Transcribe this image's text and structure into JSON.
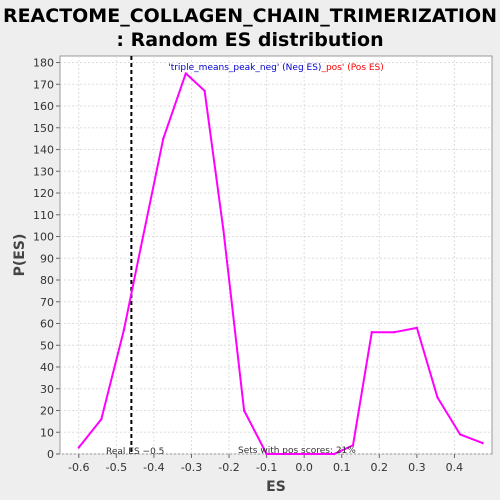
{
  "chart_data": {
    "type": "line",
    "title_line1": "REACTOME_COLLAGEN_CHAIN_TRIMERIZATION",
    "title_line2": ": Random ES distribution",
    "xlabel": "ES",
    "ylabel": "P(ES)",
    "xlim": [
      -0.65,
      0.5
    ],
    "ylim": [
      0,
      183
    ],
    "x_ticks": [
      -0.6,
      -0.5,
      -0.4,
      -0.3,
      -0.2,
      -0.1,
      0.0,
      0.1,
      0.2,
      0.3,
      0.4
    ],
    "x_tick_labels": [
      "-0.6",
      "-0.5",
      "-0.4",
      "-0.3",
      "-0.2",
      "-0.1",
      "0.0",
      "0.1",
      "0.2",
      "0.3",
      "0.4"
    ],
    "y_ticks": [
      0,
      10,
      20,
      30,
      40,
      50,
      60,
      70,
      80,
      90,
      100,
      110,
      120,
      130,
      140,
      150,
      160,
      170,
      180
    ],
    "y_tick_labels": [
      "0",
      "10",
      "20",
      "30",
      "40",
      "50",
      "60",
      "70",
      "80",
      "90",
      "100",
      "110",
      "120",
      "130",
      "140",
      "150",
      "160",
      "170",
      "180"
    ],
    "grid": true,
    "series": [
      {
        "color": "#ff00ff",
        "x": [
          -0.6,
          -0.54,
          -0.48,
          -0.435,
          -0.375,
          -0.315,
          -0.265,
          -0.215,
          -0.16,
          -0.1,
          -0.04,
          0.02,
          0.08,
          0.13,
          0.18,
          0.24,
          0.3,
          0.355,
          0.415,
          0.475
        ],
        "y": [
          3,
          16,
          57,
          95,
          145,
          175,
          167,
          103,
          20,
          0,
          0,
          0,
          0,
          4,
          56,
          56,
          58,
          26,
          9,
          5
        ]
      }
    ],
    "real_es_x": -0.46,
    "legend": {
      "neg_name": "'triple_means_peak_neg'",
      "neg_tag": " (Neg ES)",
      "pos_name": "_pos'",
      "pos_tag": " (Pos ES)",
      "neg_color": "#0000cc",
      "pos_color": "#ff0000"
    },
    "annotations": {
      "real_es": "Real ES −0.5",
      "pos_scores": "Sets with pos scores: 21%"
    }
  }
}
